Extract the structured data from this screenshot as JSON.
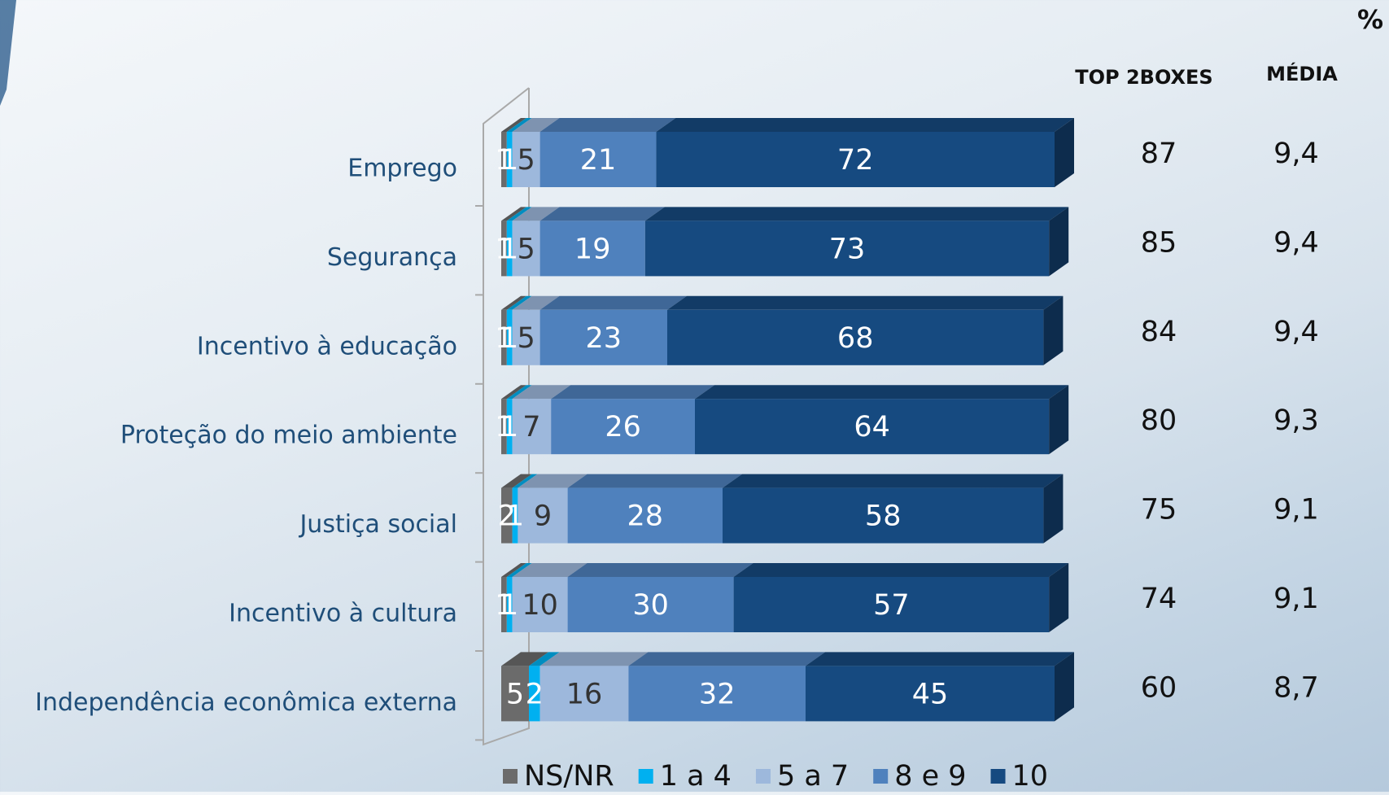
{
  "chart_data": {
    "type": "bar3d_stacked_horizontal",
    "unit": "%",
    "categories": [
      "Emprego",
      "Segurança",
      "Incentivo à educação",
      "Proteção do meio ambiente",
      "Justiça social",
      "Incentivo à cultura",
      "Independência econômica externa"
    ],
    "series": [
      {
        "name": "NS/NR",
        "color": "#6b6b6b",
        "values": [
          1,
          1,
          1,
          1,
          2,
          1,
          5
        ]
      },
      {
        "name": "1 a 4",
        "color": "#00b0f0",
        "values": [
          1,
          1,
          1,
          1,
          1,
          1,
          2
        ]
      },
      {
        "name": "5 a 7",
        "color": "#9db8dc",
        "values": [
          5,
          5,
          5,
          7,
          9,
          10,
          16
        ]
      },
      {
        "name": "8 e 9",
        "color": "#4f81bd",
        "values": [
          21,
          19,
          23,
          26,
          28,
          30,
          32
        ]
      },
      {
        "name": "10",
        "color": "#164a80",
        "values": [
          72,
          73,
          68,
          64,
          58,
          57,
          45
        ]
      }
    ],
    "xlim": [
      0,
      100
    ],
    "columns": [
      {
        "header": "TOP 2BOXES",
        "values": [
          87,
          85,
          84,
          80,
          75,
          74,
          60
        ]
      },
      {
        "header": "MÉDIA",
        "values": [
          9.4,
          9.4,
          9.4,
          9.3,
          9.1,
          9.1,
          8.7
        ],
        "value_labels": [
          "9,4",
          "9,4",
          "9,4",
          "9,3",
          "9,1",
          "9,1",
          "8,7"
        ]
      }
    ]
  }
}
